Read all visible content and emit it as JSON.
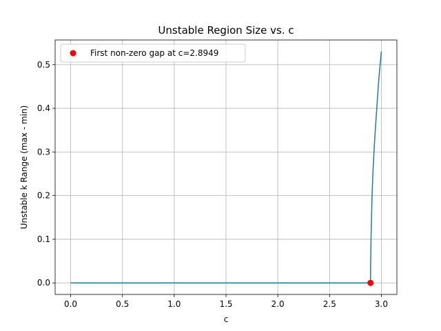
{
  "chart_data": {
    "type": "line",
    "title": "Unstable Region Size vs. c",
    "xlabel": "c",
    "ylabel": "Unstable k Range (max - min)",
    "xlim": [
      -0.15,
      3.15
    ],
    "ylim": [
      -0.0265,
      0.5565
    ],
    "x_ticks": [
      "0.0",
      "0.5",
      "1.0",
      "1.5",
      "2.0",
      "2.5",
      "3.0"
    ],
    "y_ticks": [
      "0.0",
      "0.1",
      "0.2",
      "0.3",
      "0.4",
      "0.5"
    ],
    "grid": true,
    "legend_position": "upper-left",
    "series": [
      {
        "color": "#1f77b4",
        "x": [
          0.0,
          0.5,
          1.0,
          1.5,
          2.0,
          2.5,
          2.89,
          2.8949,
          2.896,
          2.898,
          2.9,
          2.905,
          2.91,
          2.92,
          2.93,
          2.94,
          2.95,
          2.96,
          2.97,
          2.98,
          2.99,
          3.0
        ],
        "y": [
          0.0,
          0.0,
          0.0,
          0.0,
          0.0,
          0.0,
          0.0,
          0.0,
          0.03,
          0.07,
          0.1,
          0.15,
          0.2,
          0.26,
          0.305,
          0.345,
          0.38,
          0.415,
          0.45,
          0.48,
          0.505,
          0.53
        ]
      }
    ],
    "markers": [
      {
        "label": "First non-zero gap at c=2.8949",
        "x": 2.8949,
        "y": 0.0,
        "color": "#ff0000"
      }
    ]
  }
}
